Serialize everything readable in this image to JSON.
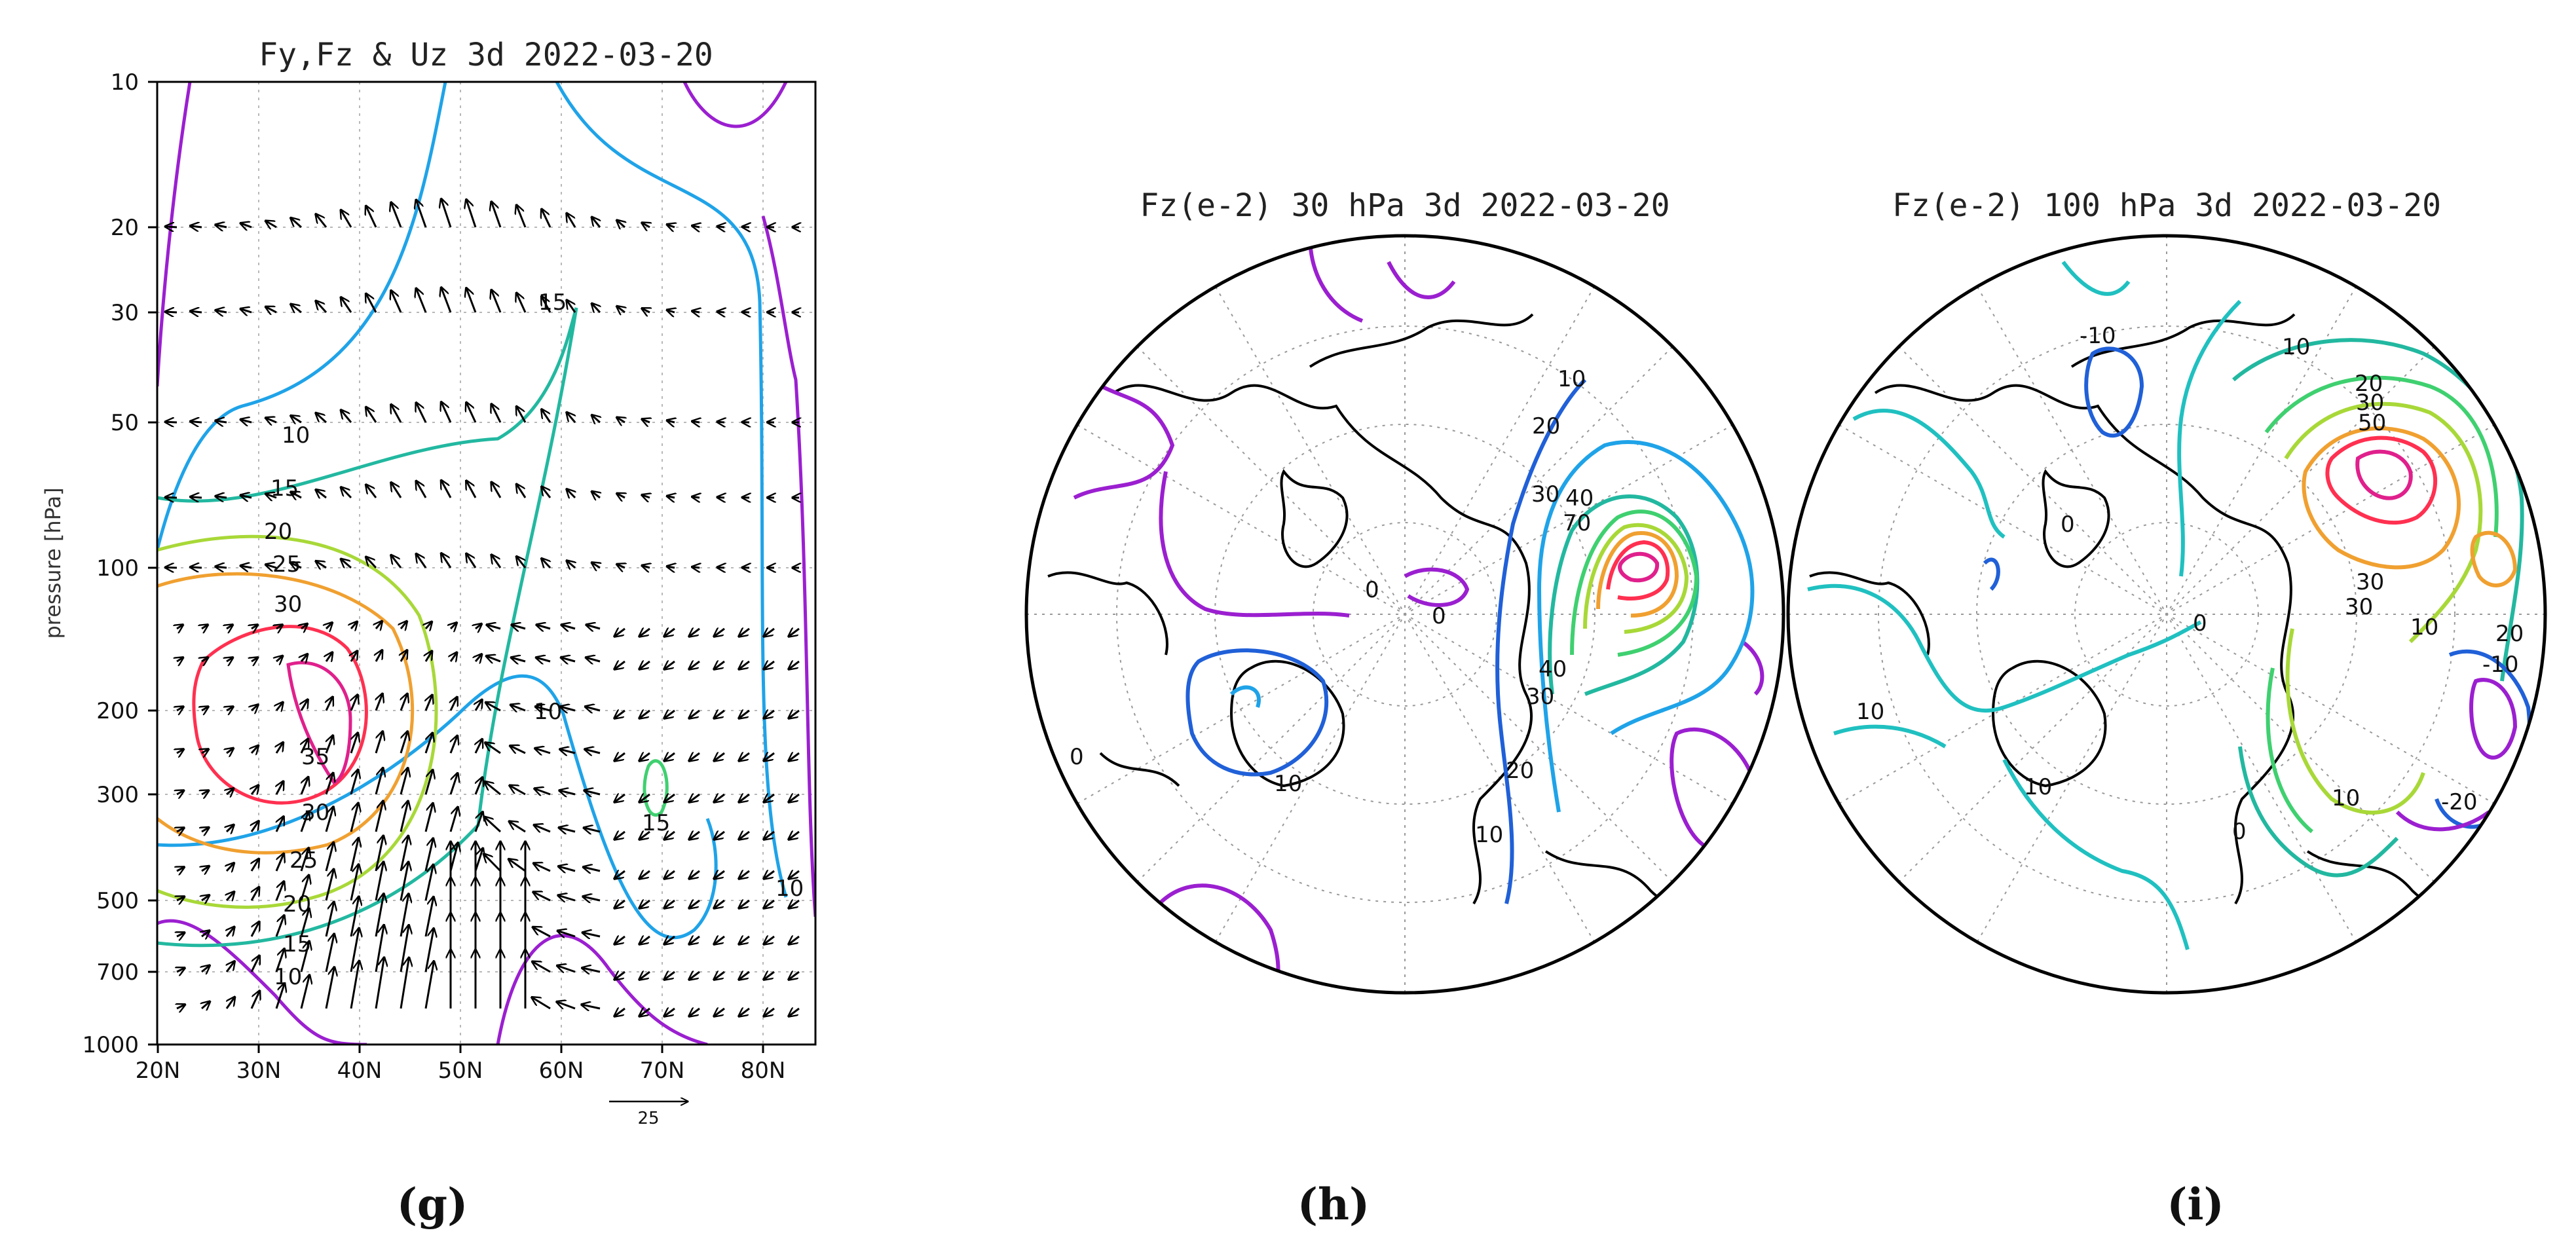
{
  "colors": {
    "purple": "#9b1fd0",
    "blue": "#1fa3e8",
    "teal": "#22b8a0",
    "green": "#3fd070",
    "lime": "#a8d838",
    "orange": "#f0a030",
    "red": "#ff3050",
    "magenta": "#e0208c",
    "polar_blue": "#2060d8",
    "polar_cyan": "#20c0c0"
  },
  "chart_data": [
    {
      "type": "contour+vector",
      "panel": "(g)",
      "title": "Fy,Fz & Uz 3d 2022-03-20",
      "ylabel": "pressure [hPa]",
      "xlabel": "",
      "x_ticks": [
        "20N",
        "30N",
        "40N",
        "50N",
        "60N",
        "70N",
        "80N"
      ],
      "xlim": [
        20,
        85
      ],
      "y_ticks": [
        "10",
        "20",
        "30",
        "50",
        "100",
        "200",
        "300",
        "500",
        "700",
        "1000"
      ],
      "ylim": [
        1000,
        10
      ],
      "y_scale": "log",
      "grid": true,
      "contour_levels": [
        10,
        15,
        20,
        25,
        30,
        35
      ],
      "contour_labels": [
        "10",
        "15",
        "20",
        "25",
        "30",
        "35",
        "30",
        "25",
        "20",
        "15",
        "10",
        "15",
        "10",
        "10",
        "10",
        "15"
      ],
      "vector_reference": "25",
      "jet_core": {
        "lat": 35,
        "pressure": 200,
        "value": 35
      }
    },
    {
      "type": "polar-contour",
      "panel": "(h)",
      "title": "Fz(e-2) 30 hPa 3d 2022-03-20",
      "contour_labels": [
        "10",
        "20",
        "30",
        "40",
        "70",
        "40",
        "30",
        "20",
        "10",
        "10",
        "0",
        "0",
        "0"
      ],
      "maximum": 70
    },
    {
      "type": "polar-contour",
      "panel": "(i)",
      "title": "Fz(e-2) 100 hPa 3d 2022-03-20",
      "contour_labels": [
        "-10",
        "10",
        "20",
        "30",
        "50",
        "30",
        "30",
        "10",
        "20",
        "-10",
        "-20",
        "10",
        "0",
        "0",
        "0",
        "10",
        "10"
      ],
      "maximum": 50
    }
  ],
  "panel_labels": [
    "(g)",
    "(h)",
    "(i)"
  ]
}
